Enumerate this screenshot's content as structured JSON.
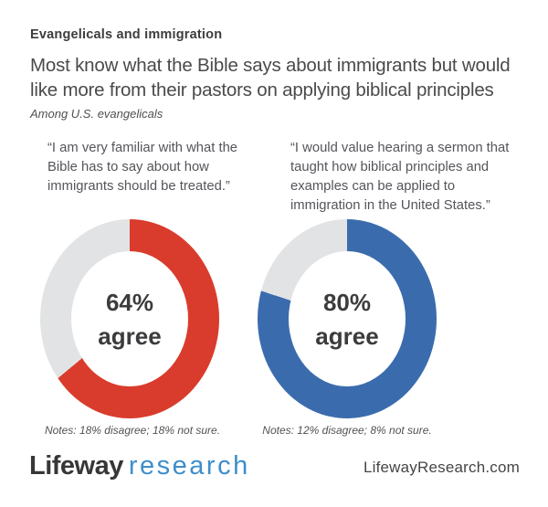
{
  "header": {
    "eyebrow": "Evangelicals and immigration",
    "title": "Most know what the Bible says about immigrants but would like more from their pastors on applying biblical principles",
    "title_lines": [
      "Most know what the Bible says about immigrants but would",
      "like more from their pastors on applying biblical principles"
    ],
    "subtitle": "Among U.S. evangelicals"
  },
  "chart_data": [
    {
      "type": "pie",
      "subtype": "donut",
      "question": "“I am very familiar with what the Bible has to say about how immigrants should be treated.”",
      "center_value": "64%",
      "center_label": "agree",
      "slices": [
        {
          "label": "agree",
          "value": 64,
          "color": "#d93c2c"
        },
        {
          "label": "disagree",
          "value": 18,
          "color": "#e2e3e4"
        },
        {
          "label": "not sure",
          "value": 18,
          "color": "#e2e3e4"
        }
      ],
      "start_angle_deg": 0,
      "direction": "clockwise",
      "notes": "Notes: 18% disagree; 18% not sure."
    },
    {
      "type": "pie",
      "subtype": "donut",
      "question": "“I would value hearing a sermon that taught how biblical principles and examples can be applied to immigration in the United States.”",
      "center_value": "80%",
      "center_label": "agree",
      "slices": [
        {
          "label": "agree",
          "value": 80,
          "color": "#3a6cad"
        },
        {
          "label": "disagree",
          "value": 12,
          "color": "#e2e3e4"
        },
        {
          "label": "not sure",
          "value": 8,
          "color": "#e2e3e4"
        }
      ],
      "start_angle_deg": 0,
      "direction": "clockwise",
      "notes": "Notes: 12% disagree; 8% not sure."
    }
  ],
  "footer": {
    "logo_primary": "Lifeway",
    "logo_secondary": "research",
    "website": "LifewayResearch.com"
  },
  "colors": {
    "agree_red": "#d93c2c",
    "agree_blue": "#3a6cad",
    "remainder_gray": "#e2e3e4",
    "text_dark": "#3c3c3e",
    "logo_blue": "#3e8ecb",
    "background": "#ffffff"
  }
}
